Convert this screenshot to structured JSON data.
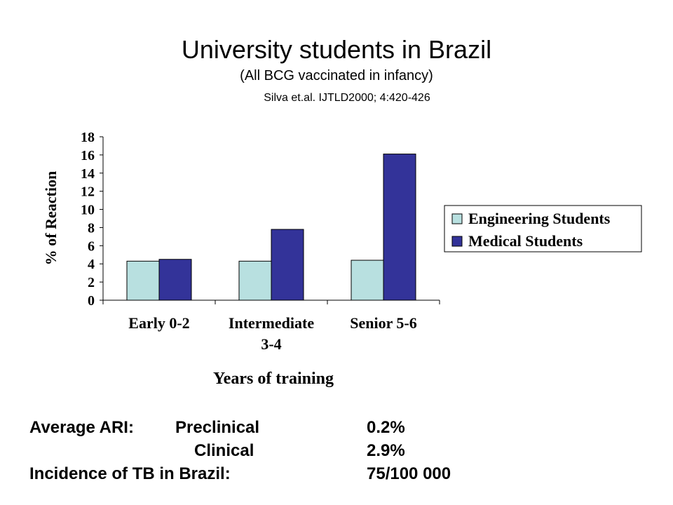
{
  "header": {
    "title": "University students in Brazil",
    "subtitle": "(All BCG vaccinated in infancy)",
    "citation": "Silva et.al. IJTLD2000; 4:420-426"
  },
  "chart_data": {
    "type": "bar",
    "categories": [
      [
        "Early 0-2"
      ],
      [
        "Intermediate",
        "3-4"
      ],
      [
        "Senior 5-6"
      ]
    ],
    "series": [
      {
        "name": "Engineering Students",
        "color": "#b8e0e0",
        "values": [
          4.3,
          4.3,
          4.4
        ]
      },
      {
        "name": "Medical Students",
        "color": "#333399",
        "values": [
          4.5,
          7.8,
          16.1
        ]
      }
    ],
    "xlabel": "Years of training",
    "ylabel": "% of Reaction",
    "ylim": [
      0,
      18
    ],
    "yticks": [
      0,
      2,
      4,
      6,
      8,
      10,
      12,
      14,
      16,
      18
    ],
    "legend_position": "right",
    "grid": false
  },
  "stats": {
    "row1_label": "Average ARI:",
    "row1_sub": "Preclinical",
    "row1_value": "0.2%",
    "row2_sub": "Clinical",
    "row2_value": "2.9%",
    "row3_label": "Incidence of TB in Brazil:",
    "row3_value": "75/100 000"
  }
}
